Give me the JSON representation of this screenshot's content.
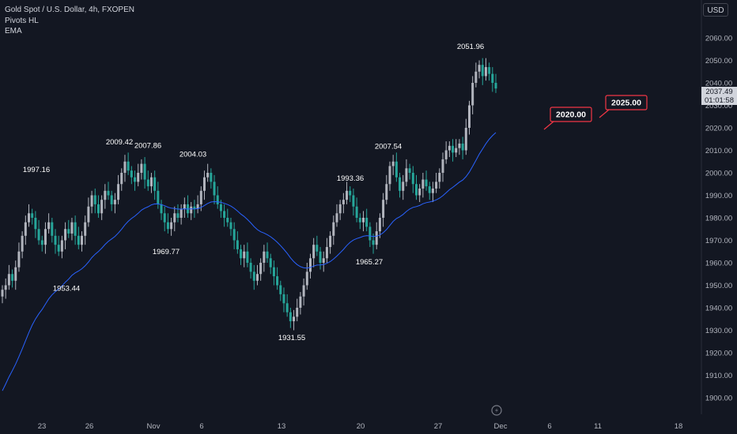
{
  "header": {
    "symbol_line": "Gold Spot / U.S. Dollar, 4h, FXOPEN",
    "indicator_1": "Pivots HL",
    "indicator_2": "EMA"
  },
  "price_scale": {
    "currency": "USD",
    "last_price": "2037.49",
    "countdown": "01:01:58"
  },
  "colors": {
    "background": "#131722",
    "bull_candle": "#b2b5be",
    "bear_candle": "#26a69a",
    "ema_line": "#2962ff",
    "alert_border": "#f23645",
    "text": "#d1d4dc"
  },
  "chart_data": {
    "type": "candlestick",
    "title": "Gold Spot / U.S. Dollar, 4h, FXOPEN",
    "y_ticks": [
      1900,
      1910,
      1920,
      1930,
      1940,
      1950,
      1960,
      1970,
      1980,
      1990,
      2000,
      2010,
      2020,
      2030,
      2040,
      2050,
      2060
    ],
    "y_tick_labels": [
      "1900.00",
      "1910.00",
      "1920.00",
      "1930.00",
      "1940.00",
      "1950.00",
      "1960.00",
      "1970.00",
      "1980.00",
      "1990.00",
      "2000.00",
      "2010.00",
      "2020.00",
      "2030.00",
      "2040.00",
      "2050.00",
      "2060.00"
    ],
    "ylim": [
      1895,
      2070
    ],
    "x_tick_labels": [
      "23",
      "26",
      "Nov",
      "6",
      "13",
      "20",
      "27",
      "Dec",
      "6",
      "11",
      "18"
    ],
    "candles_close": [
      1948,
      1950,
      1955,
      1952,
      1958,
      1965,
      1972,
      1978,
      1982,
      1980,
      1975,
      1970,
      1968,
      1975,
      1978,
      1972,
      1968,
      1965,
      1970,
      1975,
      1973,
      1978,
      1972,
      1968,
      1972,
      1978,
      1985,
      1990,
      1986,
      1982,
      1988,
      1992,
      1990,
      1986,
      1988,
      1995,
      2000,
      2005,
      2001,
      1998,
      1996,
      2000,
      2004,
      1997,
      1994,
      1998,
      1992,
      1986,
      1982,
      1978,
      1975,
      1978,
      1982,
      1980,
      1984,
      1986,
      1982,
      1985,
      1984,
      1986,
      1992,
      1998,
      2000,
      1996,
      1990,
      1986,
      1983,
      1980,
      1978,
      1975,
      1970,
      1966,
      1962,
      1965,
      1960,
      1956,
      1952,
      1955,
      1960,
      1965,
      1962,
      1958,
      1954,
      1950,
      1946,
      1942,
      1938,
      1934,
      1936,
      1940,
      1945,
      1950,
      1956,
      1962,
      1968,
      1965,
      1960,
      1962,
      1967,
      1972,
      1978,
      1982,
      1986,
      1988,
      1992,
      1990,
      1985,
      1980,
      1978,
      1980,
      1976,
      1970,
      1968,
      1974,
      1980,
      1988,
      1995,
      2003,
      2005,
      1998,
      1992,
      1996,
      2002,
      2000,
      1995,
      1990,
      1993,
      1997,
      1994,
      1991,
      1993,
      1996,
      2000,
      2006,
      2010,
      2012,
      2009,
      2011,
      2013,
      2010,
      2020,
      2030,
      2040,
      2045,
      2048,
      2043,
      2047,
      2044,
      2040,
      2037.49
    ],
    "ema_label": "EMA",
    "pivots": [
      {
        "label": "1997.16",
        "type": "high"
      },
      {
        "label": "1953.44",
        "type": "low"
      },
      {
        "label": "2009.42",
        "type": "high"
      },
      {
        "label": "2007.86",
        "type": "high"
      },
      {
        "label": "1969.77",
        "type": "low"
      },
      {
        "label": "2004.03",
        "type": "high"
      },
      {
        "label": "1931.55",
        "type": "low"
      },
      {
        "label": "1993.36",
        "type": "high"
      },
      {
        "label": "1965.27",
        "type": "low"
      },
      {
        "label": "2007.54",
        "type": "high"
      },
      {
        "label": "2051.96",
        "type": "high"
      }
    ],
    "alerts": [
      {
        "label": "2020.00",
        "value": 2020.0
      },
      {
        "label": "2025.00",
        "value": 2025.0
      }
    ],
    "grid": false,
    "legend": "top-left"
  }
}
